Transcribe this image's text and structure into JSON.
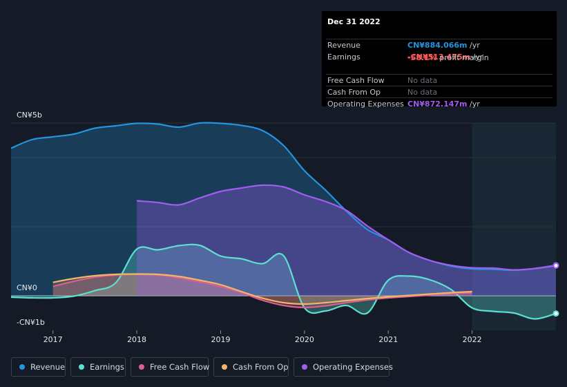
{
  "chart_data": {
    "type": "area",
    "x_unit": "year",
    "xlim": [
      2016.5,
      2023.0
    ],
    "ylim": [
      -1,
      5
    ],
    "y_unit": "CN¥b",
    "y_tick_labels": [
      {
        "value": 5,
        "label": "CN¥5b"
      },
      {
        "value": 0,
        "label": "CN¥0"
      },
      {
        "value": -1,
        "label": "-CN¥1b"
      }
    ],
    "x_ticks": [
      2017,
      2018,
      2019,
      2020,
      2021,
      2022
    ],
    "gridlines": [
      5,
      4,
      2,
      0
    ],
    "forecast_shade_start": 2022.0,
    "series": [
      {
        "name": "Revenue",
        "color": "#2394df",
        "points": [
          [
            2016.5,
            4.27
          ],
          [
            2016.75,
            4.52
          ],
          [
            2017.0,
            4.6
          ],
          [
            2017.25,
            4.68
          ],
          [
            2017.5,
            4.85
          ],
          [
            2017.75,
            4.92
          ],
          [
            2018.0,
            4.99
          ],
          [
            2018.25,
            4.97
          ],
          [
            2018.5,
            4.88
          ],
          [
            2018.75,
            5.0
          ],
          [
            2019.0,
            4.99
          ],
          [
            2019.25,
            4.93
          ],
          [
            2019.5,
            4.78
          ],
          [
            2019.75,
            4.35
          ],
          [
            2020.0,
            3.62
          ],
          [
            2020.25,
            3.06
          ],
          [
            2020.5,
            2.45
          ],
          [
            2020.75,
            1.92
          ],
          [
            2021.0,
            1.62
          ],
          [
            2021.25,
            1.25
          ],
          [
            2021.5,
            1.02
          ],
          [
            2021.75,
            0.86
          ],
          [
            2022.0,
            0.78
          ],
          [
            2022.25,
            0.77
          ],
          [
            2022.5,
            0.74
          ],
          [
            2022.75,
            0.79
          ],
          [
            2023.0,
            0.884
          ]
        ]
      },
      {
        "name": "Earnings",
        "color": "#5ce0d2",
        "points": [
          [
            2016.5,
            -0.04
          ],
          [
            2016.75,
            -0.06
          ],
          [
            2017.0,
            -0.06
          ],
          [
            2017.25,
            -0.01
          ],
          [
            2017.5,
            0.15
          ],
          [
            2017.75,
            0.38
          ],
          [
            2018.0,
            1.35
          ],
          [
            2018.25,
            1.33
          ],
          [
            2018.5,
            1.45
          ],
          [
            2018.75,
            1.46
          ],
          [
            2019.0,
            1.15
          ],
          [
            2019.25,
            1.07
          ],
          [
            2019.5,
            0.93
          ],
          [
            2019.75,
            1.16
          ],
          [
            2020.0,
            -0.35
          ],
          [
            2020.25,
            -0.44
          ],
          [
            2020.5,
            -0.28
          ],
          [
            2020.75,
            -0.5
          ],
          [
            2021.0,
            0.45
          ],
          [
            2021.25,
            0.57
          ],
          [
            2021.5,
            0.46
          ],
          [
            2021.75,
            0.18
          ],
          [
            2022.0,
            -0.35
          ],
          [
            2022.25,
            -0.45
          ],
          [
            2022.5,
            -0.5
          ],
          [
            2022.75,
            -0.67
          ],
          [
            2023.0,
            -0.513
          ]
        ]
      },
      {
        "name": "Free Cash Flow",
        "color": "#e05d92",
        "points": [
          [
            2017.0,
            0.27
          ],
          [
            2017.25,
            0.42
          ],
          [
            2017.5,
            0.54
          ],
          [
            2017.75,
            0.6
          ],
          [
            2018.0,
            0.62
          ],
          [
            2018.25,
            0.6
          ],
          [
            2018.5,
            0.52
          ],
          [
            2018.75,
            0.4
          ],
          [
            2019.0,
            0.27
          ],
          [
            2019.25,
            0.09
          ],
          [
            2019.5,
            -0.13
          ],
          [
            2019.75,
            -0.28
          ],
          [
            2020.0,
            -0.34
          ],
          [
            2020.25,
            -0.29
          ],
          [
            2020.5,
            -0.2
          ],
          [
            2020.75,
            -0.12
          ],
          [
            2021.0,
            -0.06
          ],
          [
            2021.25,
            -0.02
          ],
          [
            2021.5,
            0.02
          ],
          [
            2021.75,
            0.06
          ],
          [
            2022.0,
            0.09
          ]
        ]
      },
      {
        "name": "Cash From Op",
        "color": "#f0b866",
        "points": [
          [
            2017.0,
            0.39
          ],
          [
            2017.25,
            0.5
          ],
          [
            2017.5,
            0.58
          ],
          [
            2017.75,
            0.62
          ],
          [
            2018.0,
            0.63
          ],
          [
            2018.25,
            0.62
          ],
          [
            2018.5,
            0.56
          ],
          [
            2018.75,
            0.45
          ],
          [
            2019.0,
            0.32
          ],
          [
            2019.25,
            0.12
          ],
          [
            2019.5,
            -0.07
          ],
          [
            2019.75,
            -0.2
          ],
          [
            2020.0,
            -0.24
          ],
          [
            2020.25,
            -0.2
          ],
          [
            2020.5,
            -0.14
          ],
          [
            2020.75,
            -0.08
          ],
          [
            2021.0,
            -0.03
          ],
          [
            2021.25,
            0.01
          ],
          [
            2021.5,
            0.05
          ],
          [
            2021.75,
            0.09
          ],
          [
            2022.0,
            0.12
          ]
        ]
      },
      {
        "name": "Operating Expenses",
        "color": "#a35cf0",
        "points": [
          [
            2018.0,
            2.75
          ],
          [
            2018.25,
            2.7
          ],
          [
            2018.5,
            2.63
          ],
          [
            2018.75,
            2.83
          ],
          [
            2019.0,
            3.02
          ],
          [
            2019.25,
            3.12
          ],
          [
            2019.5,
            3.2
          ],
          [
            2019.75,
            3.15
          ],
          [
            2020.0,
            2.92
          ],
          [
            2020.25,
            2.73
          ],
          [
            2020.5,
            2.47
          ],
          [
            2020.75,
            2.02
          ],
          [
            2021.0,
            1.62
          ],
          [
            2021.25,
            1.25
          ],
          [
            2021.5,
            1.02
          ],
          [
            2021.75,
            0.88
          ],
          [
            2022.0,
            0.81
          ],
          [
            2022.25,
            0.8
          ],
          [
            2022.5,
            0.75
          ],
          [
            2022.75,
            0.79
          ],
          [
            2023.0,
            0.872
          ]
        ]
      }
    ]
  },
  "tooltip": {
    "date": "Dec 31 2022",
    "rows": [
      {
        "label": "Revenue",
        "value": "CN¥884.066m",
        "unit": " /yr",
        "color": "#2394df"
      },
      {
        "label": "Earnings",
        "value": "-CN¥513.475m",
        "unit": " /yr",
        "color": "#ff5a5a"
      },
      {
        "label": "Free Cash Flow",
        "value": "No data",
        "unit": "",
        "color": "#6e737b"
      },
      {
        "label": "Cash From Op",
        "value": "No data",
        "unit": "",
        "color": "#6e737b"
      },
      {
        "label": "Operating Expenses",
        "value": "CN¥872.147m",
        "unit": " /yr",
        "color": "#a35cf0"
      }
    ],
    "margin_value": "-58.1%",
    "margin_text": " profit margin"
  },
  "legend": [
    {
      "label": "Revenue",
      "color": "#2394df"
    },
    {
      "label": "Earnings",
      "color": "#5ce0d2"
    },
    {
      "label": "Free Cash Flow",
      "color": "#e05d92"
    },
    {
      "label": "Cash From Op",
      "color": "#f0b866"
    },
    {
      "label": "Operating Expenses",
      "color": "#a35cf0"
    }
  ]
}
